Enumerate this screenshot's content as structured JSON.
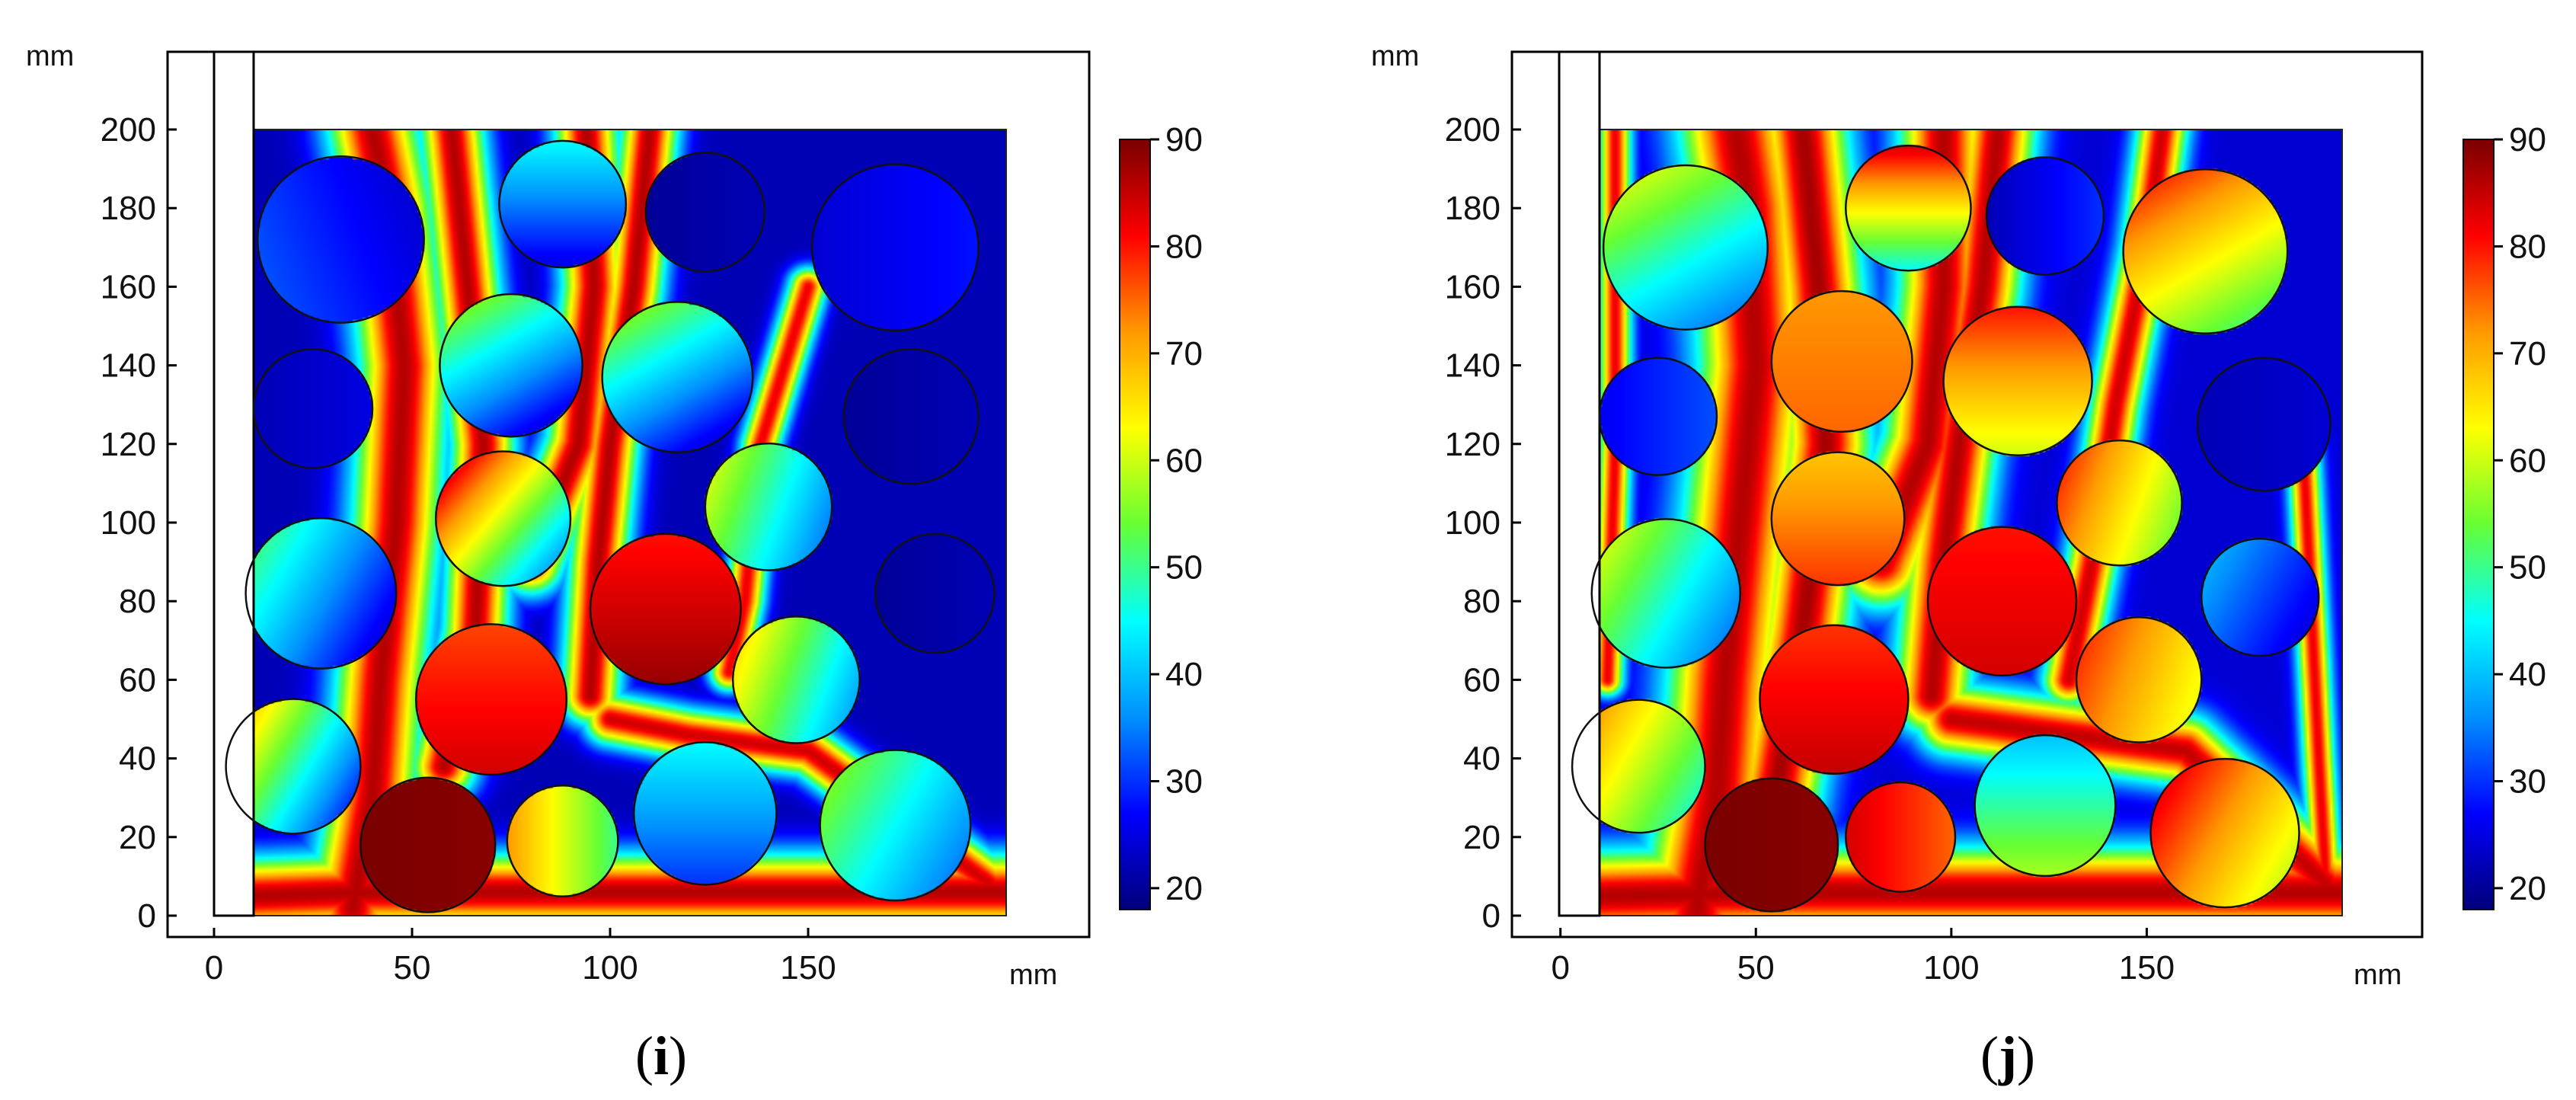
{
  "figure": {
    "panels": [
      {
        "id": "i",
        "caption_open": "(",
        "caption_letter": "i",
        "caption_close": ")"
      },
      {
        "id": "j",
        "caption_open": "(",
        "caption_letter": "j",
        "caption_close": ")"
      }
    ]
  },
  "colormap": {
    "stops": [
      "#00007a",
      "#0000ff",
      "#0090ff",
      "#00ffff",
      "#66ff33",
      "#ffff00",
      "#ff9900",
      "#ff0000",
      "#7a0000"
    ]
  },
  "chart_data": [
    {
      "type": "heatmap",
      "panel": "i",
      "x_unit": "mm",
      "y_unit": "mm",
      "xlim": [
        -5,
        215
      ],
      "ylim": [
        -5,
        220
      ],
      "x_ticks": [
        0,
        50,
        100,
        150
      ],
      "y_ticks": [
        0,
        20,
        40,
        60,
        80,
        100,
        120,
        140,
        160,
        180,
        200
      ],
      "domain_x": [
        10,
        200
      ],
      "domain_y": [
        0,
        200
      ],
      "inlet_channel_x": [
        0,
        10
      ],
      "colorbar": {
        "min": 18,
        "max": 90,
        "ticks": [
          20,
          30,
          40,
          50,
          60,
          70,
          80,
          90
        ]
      },
      "background_value": 22,
      "spheres": [
        {
          "x": 32,
          "y": 172,
          "r": 21,
          "t0": 24,
          "t1": 32,
          "dir": 200
        },
        {
          "x": 88,
          "y": 181,
          "r": 16,
          "t0": 45,
          "t1": 25,
          "dir": 270
        },
        {
          "x": 124,
          "y": 179,
          "r": 15,
          "t0": 20,
          "t1": 22,
          "dir": 0
        },
        {
          "x": 172,
          "y": 170,
          "r": 21,
          "t0": 24,
          "t1": 28,
          "dir": 0
        },
        {
          "x": 25,
          "y": 129,
          "r": 15,
          "t0": 22,
          "t1": 25,
          "dir": 0
        },
        {
          "x": 75,
          "y": 140,
          "r": 18,
          "t0": 55,
          "t1": 25,
          "dir": 300
        },
        {
          "x": 117,
          "y": 137,
          "r": 19,
          "t0": 55,
          "t1": 25,
          "dir": 300
        },
        {
          "x": 176,
          "y": 127,
          "r": 17,
          "t0": 20,
          "t1": 22,
          "dir": 0
        },
        {
          "x": 73,
          "y": 101,
          "r": 17,
          "t0": 82,
          "t1": 38,
          "dir": 320
        },
        {
          "x": 140,
          "y": 104,
          "r": 16,
          "t0": 60,
          "t1": 35,
          "dir": 340
        },
        {
          "x": 27,
          "y": 82,
          "r": 19,
          "t0": 50,
          "t1": 25,
          "dir": 330
        },
        {
          "x": 114,
          "y": 78,
          "r": 19,
          "t0": 88,
          "t1": 80,
          "dir": 90
        },
        {
          "x": 182,
          "y": 82,
          "r": 15,
          "t0": 20,
          "t1": 22,
          "dir": 0
        },
        {
          "x": 70,
          "y": 55,
          "r": 19,
          "t0": 84,
          "t1": 77,
          "dir": 90
        },
        {
          "x": 147,
          "y": 60,
          "r": 16,
          "t0": 65,
          "t1": 38,
          "dir": 340
        },
        {
          "x": 20,
          "y": 38,
          "r": 17,
          "t0": 68,
          "t1": 30,
          "dir": 330
        },
        {
          "x": 54,
          "y": 18,
          "r": 17,
          "t0": 90,
          "t1": 89,
          "dir": 0
        },
        {
          "x": 88,
          "y": 19,
          "r": 14,
          "t0": 72,
          "t1": 50,
          "dir": 0
        },
        {
          "x": 124,
          "y": 26,
          "r": 18,
          "t0": 30,
          "t1": 45,
          "dir": 90
        },
        {
          "x": 172,
          "y": 23,
          "r": 19,
          "t0": 55,
          "t1": 35,
          "dir": 330
        }
      ],
      "hot_channels": [
        {
          "w": 12,
          "v": 86,
          "pts": [
            [
              10,
              5
            ],
            [
              40,
              6
            ],
            [
              200,
              6
            ]
          ]
        },
        {
          "w": 14,
          "v": 86,
          "pts": [
            [
              35,
              2
            ],
            [
              40,
              30
            ],
            [
              42,
              60
            ],
            [
              46,
              100
            ],
            [
              48,
              140
            ],
            [
              44,
              180
            ],
            [
              40,
              200
            ]
          ]
        },
        {
          "w": 10,
          "v": 86,
          "pts": [
            [
              58,
              38
            ],
            [
              66,
              72
            ],
            [
              68,
              120
            ],
            [
              64,
              160
            ],
            [
              60,
              200
            ]
          ]
        },
        {
          "w": 10,
          "v": 86,
          "pts": [
            [
              80,
              90
            ],
            [
              92,
              120
            ],
            [
              96,
              160
            ],
            [
              94,
              200
            ]
          ]
        },
        {
          "w": 9,
          "v": 86,
          "pts": [
            [
              95,
              56
            ],
            [
              97,
              90
            ],
            [
              100,
              120
            ],
            [
              106,
              160
            ],
            [
              110,
              200
            ]
          ]
        },
        {
          "w": 8,
          "v": 84,
          "pts": [
            [
              100,
              50
            ],
            [
              120,
              46
            ],
            [
              150,
              42
            ],
            [
              196,
              8
            ]
          ]
        },
        {
          "w": 6,
          "v": 82,
          "pts": [
            [
              130,
              62
            ],
            [
              134,
              80
            ],
            [
              138,
              120
            ],
            [
              150,
              160
            ]
          ]
        }
      ]
    },
    {
      "type": "heatmap",
      "panel": "j",
      "x_unit": "mm",
      "y_unit": "mm",
      "xlim": [
        -5,
        215
      ],
      "ylim": [
        -5,
        220
      ],
      "x_ticks": [
        0,
        50,
        100,
        150
      ],
      "y_ticks": [
        0,
        20,
        40,
        60,
        80,
        100,
        120,
        140,
        160,
        180,
        200
      ],
      "domain_x": [
        10,
        200
      ],
      "domain_y": [
        0,
        200
      ],
      "inlet_channel_x": [
        0,
        10
      ],
      "colorbar": {
        "min": 18,
        "max": 90,
        "ticks": [
          20,
          30,
          40,
          50,
          60,
          70,
          80,
          90
        ]
      },
      "background_value": 24,
      "spheres": [
        {
          "x": 32,
          "y": 170,
          "r": 21,
          "t0": 60,
          "t1": 35,
          "dir": 300
        },
        {
          "x": 89,
          "y": 180,
          "r": 16,
          "t0": 84,
          "t1": 45,
          "dir": 270
        },
        {
          "x": 124,
          "y": 178,
          "r": 15,
          "t0": 22,
          "t1": 30,
          "dir": 0
        },
        {
          "x": 165,
          "y": 169,
          "r": 21,
          "t0": 78,
          "t1": 52,
          "dir": 300
        },
        {
          "x": 25,
          "y": 127,
          "r": 15,
          "t0": 26,
          "t1": 32,
          "dir": 0
        },
        {
          "x": 72,
          "y": 141,
          "r": 18,
          "t0": 75,
          "t1": 72,
          "dir": 90
        },
        {
          "x": 117,
          "y": 136,
          "r": 19,
          "t0": 80,
          "t1": 60,
          "dir": 270
        },
        {
          "x": 180,
          "y": 125,
          "r": 17,
          "t0": 22,
          "t1": 24,
          "dir": 0
        },
        {
          "x": 71,
          "y": 101,
          "r": 17,
          "t0": 78,
          "t1": 68,
          "dir": 90
        },
        {
          "x": 143,
          "y": 105,
          "r": 16,
          "t0": 78,
          "t1": 55,
          "dir": 340
        },
        {
          "x": 27,
          "y": 82,
          "r": 19,
          "t0": 60,
          "t1": 35,
          "dir": 330
        },
        {
          "x": 113,
          "y": 80,
          "r": 19,
          "t0": 84,
          "t1": 80,
          "dir": 90
        },
        {
          "x": 179,
          "y": 81,
          "r": 15,
          "t0": 38,
          "t1": 25,
          "dir": 330
        },
        {
          "x": 70,
          "y": 55,
          "r": 19,
          "t0": 85,
          "t1": 78,
          "dir": 90
        },
        {
          "x": 148,
          "y": 60,
          "r": 16,
          "t0": 78,
          "t1": 62,
          "dir": 340
        },
        {
          "x": 20,
          "y": 38,
          "r": 17,
          "t0": 72,
          "t1": 48,
          "dir": 330
        },
        {
          "x": 54,
          "y": 18,
          "r": 17,
          "t0": 90,
          "t1": 89,
          "dir": 0
        },
        {
          "x": 87,
          "y": 20,
          "r": 14,
          "t0": 84,
          "t1": 75,
          "dir": 0
        },
        {
          "x": 124,
          "y": 28,
          "r": 18,
          "t0": 58,
          "t1": 40,
          "dir": 90
        },
        {
          "x": 170,
          "y": 21,
          "r": 19,
          "t0": 82,
          "t1": 60,
          "dir": 330
        }
      ],
      "hot_channels": [
        {
          "w": 14,
          "v": 86,
          "pts": [
            [
              10,
              5
            ],
            [
              60,
              6
            ],
            [
              200,
              6
            ]
          ]
        },
        {
          "w": 18,
          "v": 86,
          "pts": [
            [
              35,
              2
            ],
            [
              40,
              30
            ],
            [
              42,
              60
            ],
            [
              46,
              100
            ],
            [
              50,
              140
            ],
            [
              48,
              180
            ],
            [
              45,
              200
            ]
          ]
        },
        {
          "w": 14,
          "v": 87,
          "pts": [
            [
              55,
              30
            ],
            [
              62,
              72
            ],
            [
              68,
              120
            ],
            [
              66,
              160
            ],
            [
              62,
              200
            ]
          ]
        },
        {
          "w": 14,
          "v": 86,
          "pts": [
            [
              82,
              90
            ],
            [
              94,
              120
            ],
            [
              98,
              160
            ],
            [
              98,
              200
            ]
          ]
        },
        {
          "w": 12,
          "v": 86,
          "pts": [
            [
              95,
              56
            ],
            [
              98,
              90
            ],
            [
              102,
              120
            ],
            [
              108,
              160
            ],
            [
              112,
              200
            ]
          ]
        },
        {
          "w": 11,
          "v": 85,
          "pts": [
            [
              100,
              50
            ],
            [
              130,
              46
            ],
            [
              160,
              42
            ],
            [
              196,
              8
            ]
          ]
        },
        {
          "w": 8,
          "v": 84,
          "pts": [
            [
              130,
              60
            ],
            [
              136,
              90
            ],
            [
              142,
              130
            ],
            [
              150,
              170
            ],
            [
              154,
              200
            ]
          ]
        },
        {
          "w": 5,
          "v": 82,
          "pts": [
            [
              196,
              5
            ],
            [
              194,
              40
            ],
            [
              192,
              80
            ],
            [
              190,
              120
            ]
          ]
        },
        {
          "w": 5,
          "v": 82,
          "pts": [
            [
              12,
              60
            ],
            [
              14,
              120
            ],
            [
              14,
              200
            ]
          ]
        }
      ]
    }
  ]
}
